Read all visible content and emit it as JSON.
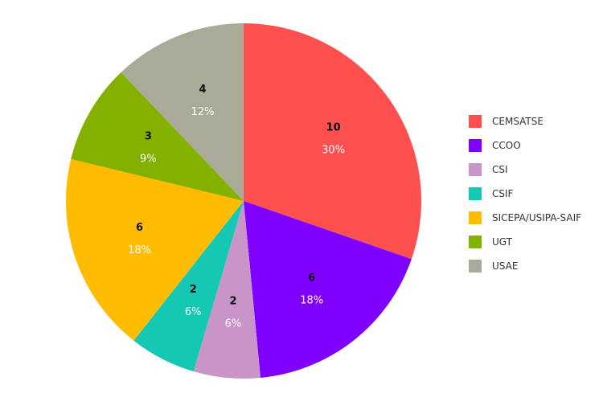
{
  "chart_data": {
    "type": "pie",
    "title": "",
    "categories": [
      "CEMSATSE",
      "CCOO",
      "CSI",
      "CSIF",
      "SICEPA/USIPA-SAIF",
      "UGT",
      "USAE"
    ],
    "values": [
      10,
      6,
      2,
      2,
      6,
      3,
      4
    ],
    "percent_labels": [
      "30%",
      "18%",
      "6%",
      "6%",
      "18%",
      "9%",
      "12%"
    ],
    "colors": [
      "#ff4f4f",
      "#8000ff",
      "#c994c7",
      "#14c8b4",
      "#ffbc00",
      "#84b000",
      "#aaaa99"
    ],
    "start_angle": "top, clockwise",
    "legend_position": "right"
  },
  "legend": {
    "items": [
      {
        "label": "CEMSATSE",
        "color": "#ff4f4f"
      },
      {
        "label": "CCOO",
        "color": "#8000ff"
      },
      {
        "label": "CSI",
        "color": "#c994c7"
      },
      {
        "label": "CSIF",
        "color": "#14c8b4"
      },
      {
        "label": "SICEPA/USIPA-SAIF",
        "color": "#ffbc00"
      },
      {
        "label": "UGT",
        "color": "#84b000"
      },
      {
        "label": "USAE",
        "color": "#aaaa99"
      }
    ]
  }
}
